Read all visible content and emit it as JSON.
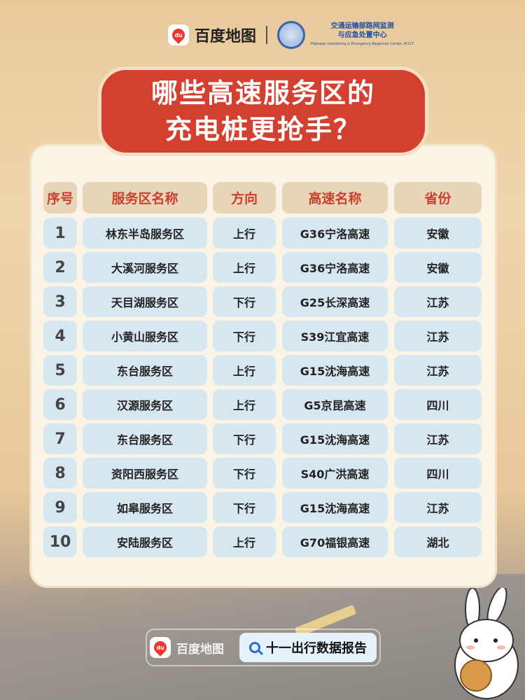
{
  "header": {
    "brand": "百度地图",
    "org_line1": "交通运输部路网监测",
    "org_line2": "与应急处置中心",
    "org_en": "Highway monitoring & Emergency Response Center, M.O.T"
  },
  "title": {
    "line1": "哪些高速服务区的",
    "line2": "充电桩更抢手？"
  },
  "table": {
    "headers": [
      "序号",
      "服务区名称",
      "方向",
      "高速名称",
      "省份"
    ],
    "rows": [
      [
        "1",
        "林东半岛服务区",
        "上行",
        "G36宁洛高速",
        "安徽"
      ],
      [
        "2",
        "大溪河服务区",
        "上行",
        "G36宁洛高速",
        "安徽"
      ],
      [
        "3",
        "天目湖服务区",
        "下行",
        "G25长深高速",
        "江苏"
      ],
      [
        "4",
        "小黄山服务区",
        "下行",
        "S39江宜高速",
        "江苏"
      ],
      [
        "5",
        "东台服务区",
        "上行",
        "G15沈海高速",
        "江苏"
      ],
      [
        "6",
        "汉源服务区",
        "上行",
        "G5京昆高速",
        "四川"
      ],
      [
        "7",
        "东台服务区",
        "下行",
        "G15沈海高速",
        "江苏"
      ],
      [
        "8",
        "资阳西服务区",
        "下行",
        "S40广洪高速",
        "四川"
      ],
      [
        "9",
        "如皋服务区",
        "下行",
        "G15沈海高速",
        "江苏"
      ],
      [
        "10",
        "安陆服务区",
        "上行",
        "G70福银高速",
        "湖北"
      ]
    ]
  },
  "footer": {
    "brand": "百度地图",
    "report": "十一出行数据报告",
    "icon": "search-icon"
  },
  "colors": {
    "title_red": "#d4402f",
    "header_text": "#c9412e",
    "row_bg": "#d6e7f0"
  }
}
